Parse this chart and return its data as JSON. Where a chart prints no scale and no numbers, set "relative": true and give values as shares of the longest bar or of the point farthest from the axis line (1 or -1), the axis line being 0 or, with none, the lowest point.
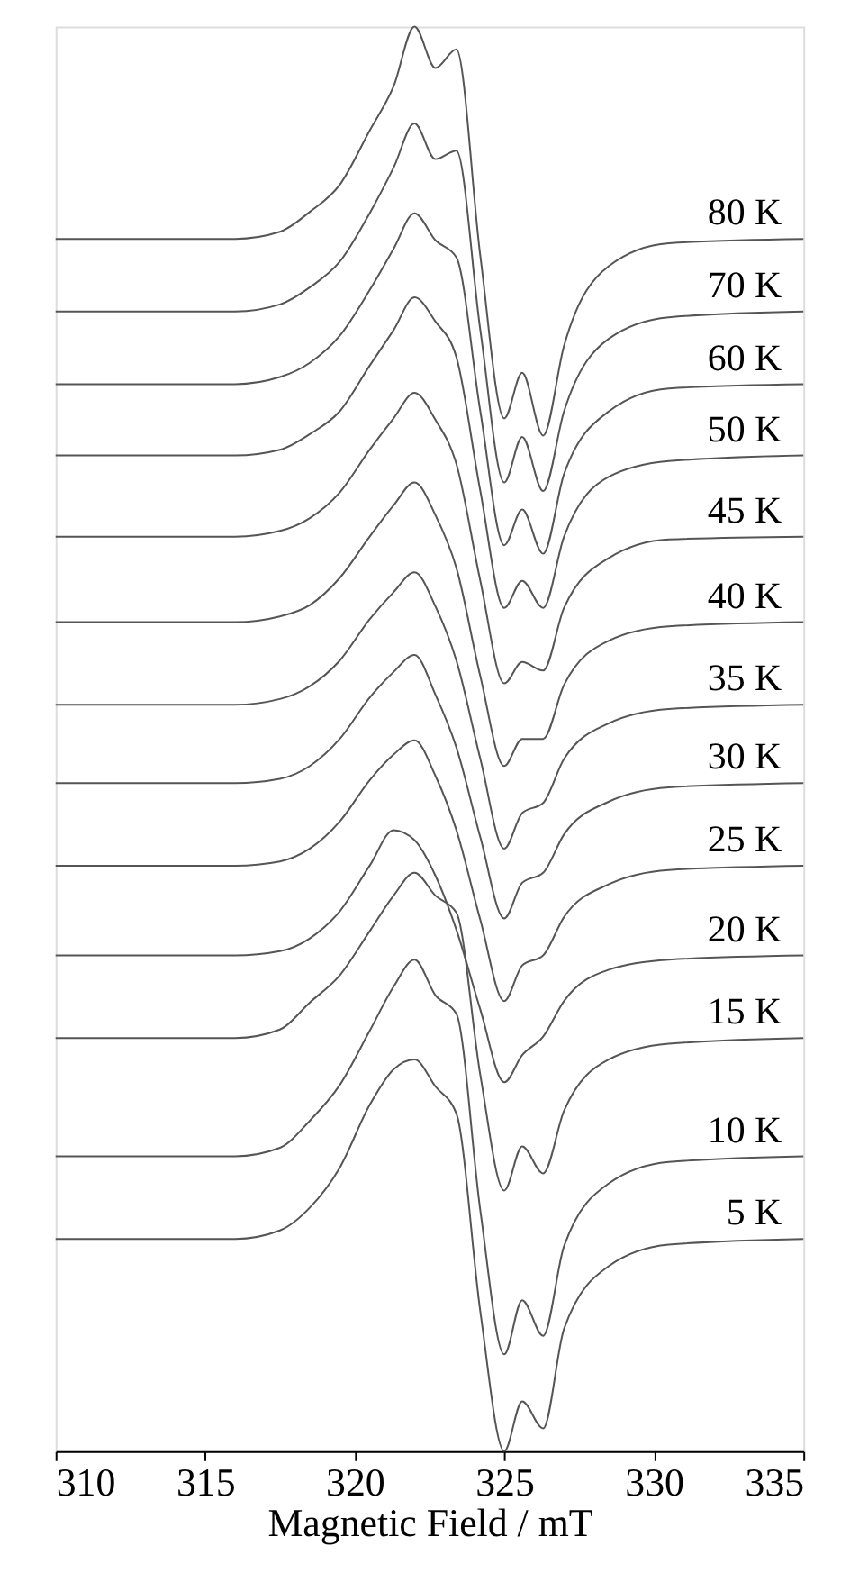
{
  "chart_data": {
    "type": "line",
    "relative": true,
    "xlabel": "Magnetic Field / mT",
    "x": [
      310,
      316,
      317.5,
      318.5,
      319.5,
      320.5,
      321.3,
      322,
      322.7,
      323.4,
      324.2,
      325,
      325.6,
      326.3,
      327,
      328.5,
      330.5,
      335
    ],
    "xlim": [
      310,
      335
    ],
    "xticks": [
      310,
      315,
      320,
      325,
      330,
      335
    ],
    "grid": false,
    "legend": false,
    "line_style": "solid",
    "series": [
      {
        "name": "80 K",
        "color": "#555555",
        "values": [
          0.851,
          0.851,
          0.856,
          0.87,
          0.889,
          0.927,
          0.958,
          1.0,
          0.971,
          0.984,
          0.839,
          0.725,
          0.757,
          0.713,
          0.776,
          0.832,
          0.848,
          0.851
        ]
      },
      {
        "name": "70 K",
        "color": "#555555",
        "values": [
          0.8,
          0.8,
          0.805,
          0.817,
          0.835,
          0.869,
          0.901,
          0.932,
          0.907,
          0.913,
          0.787,
          0.68,
          0.712,
          0.674,
          0.73,
          0.781,
          0.796,
          0.8
        ]
      },
      {
        "name": "60 K",
        "color": "#555555",
        "values": [
          0.749,
          0.749,
          0.754,
          0.764,
          0.783,
          0.815,
          0.844,
          0.869,
          0.85,
          0.838,
          0.73,
          0.636,
          0.661,
          0.63,
          0.686,
          0.73,
          0.746,
          0.749
        ]
      },
      {
        "name": "50 K",
        "color": "#555555",
        "values": [
          0.699,
          0.699,
          0.703,
          0.714,
          0.73,
          0.762,
          0.787,
          0.81,
          0.793,
          0.768,
          0.674,
          0.592,
          0.611,
          0.592,
          0.642,
          0.684,
          0.695,
          0.699
        ]
      },
      {
        "name": "45 K",
        "color": "#555555",
        "values": [
          0.642,
          0.642,
          0.646,
          0.655,
          0.673,
          0.703,
          0.725,
          0.743,
          0.724,
          0.693,
          0.611,
          0.539,
          0.554,
          0.548,
          0.592,
          0.627,
          0.64,
          0.642
        ]
      },
      {
        "name": "40 K",
        "color": "#555555",
        "values": [
          0.582,
          0.582,
          0.586,
          0.594,
          0.613,
          0.642,
          0.664,
          0.68,
          0.657,
          0.62,
          0.544,
          0.481,
          0.5,
          0.5,
          0.538,
          0.569,
          0.579,
          0.582
        ]
      },
      {
        "name": "35 K",
        "color": "#555555",
        "values": [
          0.524,
          0.524,
          0.528,
          0.537,
          0.555,
          0.584,
          0.603,
          0.617,
          0.593,
          0.555,
          0.486,
          0.423,
          0.448,
          0.455,
          0.486,
          0.511,
          0.521,
          0.524
        ]
      },
      {
        "name": "30 K",
        "color": "#555555",
        "values": [
          0.469,
          0.469,
          0.472,
          0.481,
          0.5,
          0.529,
          0.547,
          0.559,
          0.531,
          0.494,
          0.431,
          0.374,
          0.399,
          0.406,
          0.433,
          0.456,
          0.466,
          0.469
        ]
      },
      {
        "name": "25 K",
        "color": "#555555",
        "values": [
          0.411,
          0.411,
          0.414,
          0.423,
          0.442,
          0.471,
          0.489,
          0.499,
          0.474,
          0.436,
          0.373,
          0.316,
          0.341,
          0.348,
          0.375,
          0.398,
          0.408,
          0.411
        ]
      },
      {
        "name": "20 K",
        "color": "#555555",
        "values": [
          0.348,
          0.348,
          0.351,
          0.36,
          0.379,
          0.411,
          0.436,
          0.429,
          0.404,
          0.366,
          0.31,
          0.259,
          0.278,
          0.291,
          0.316,
          0.338,
          0.345,
          0.348
        ]
      },
      {
        "name": "15 K",
        "color": "#555555",
        "values": [
          0.29,
          0.29,
          0.296,
          0.315,
          0.334,
          0.365,
          0.39,
          0.406,
          0.39,
          0.378,
          0.264,
          0.183,
          0.214,
          0.195,
          0.239,
          0.275,
          0.286,
          0.29
        ]
      },
      {
        "name": "10 K",
        "color": "#555555",
        "values": [
          0.207,
          0.207,
          0.213,
          0.232,
          0.257,
          0.295,
          0.326,
          0.345,
          0.32,
          0.307,
          0.169,
          0.068,
          0.106,
          0.081,
          0.144,
          0.188,
          0.203,
          0.207
        ]
      },
      {
        "name": "5 K",
        "color": "#555555",
        "values": [
          0.149,
          0.149,
          0.155,
          0.171,
          0.199,
          0.243,
          0.268,
          0.275,
          0.256,
          0.237,
          0.098,
          0,
          0.035,
          0.016,
          0.086,
          0.13,
          0.145,
          0.149
        ]
      }
    ]
  }
}
